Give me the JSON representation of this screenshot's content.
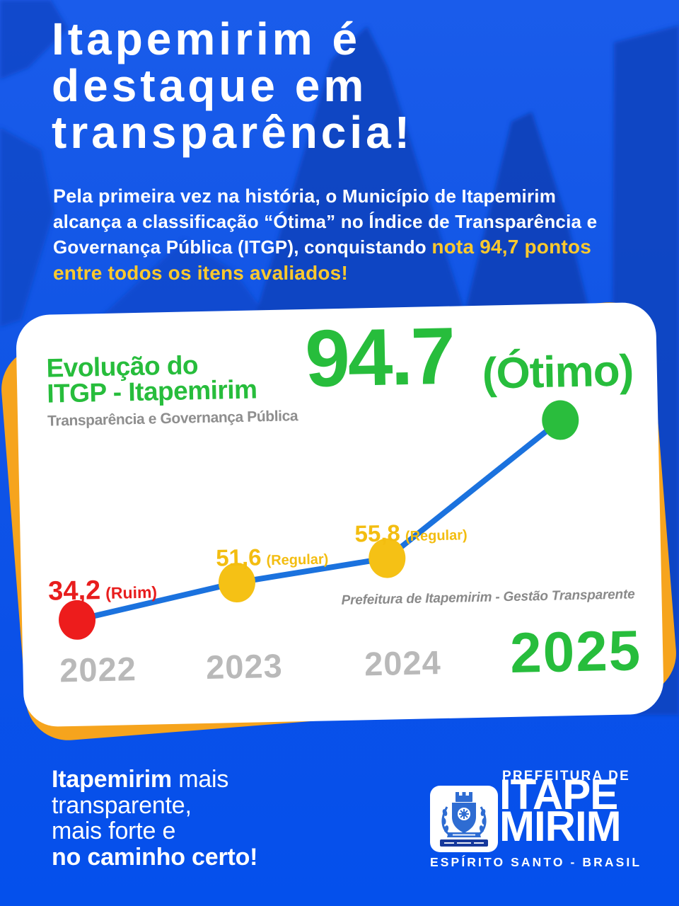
{
  "poster": {
    "headline_lines": [
      "Itapemirim é",
      "destaque em",
      "transparência!"
    ],
    "intro": {
      "segments": [
        {
          "text": "Pela primeira vez na história",
          "style": "bold-white"
        },
        {
          "text": ", o Município de Itapemirim alcança a classificação “Ótima” no Índice de Transparência e Governança Pública (ITGP), conquistando ",
          "style": "white"
        },
        {
          "text": "nota 94,7 pontos entre todos os itens avaliados!",
          "style": "bold-yellow"
        }
      ]
    }
  },
  "card": {
    "title_line1": "Evolução do",
    "title_line2": "ITGP - Itapemirim",
    "subtitle": "Transparência e Governança Pública",
    "score_value": "94.7",
    "score_label": "(Ótimo)",
    "credit": "Prefeitura de Itapemirim - Gestão Transparente"
  },
  "chart_data": {
    "type": "line",
    "title": "Evolução do ITGP - Itapemirim",
    "subtitle": "Transparência e Governança Pública",
    "categories": [
      "2022",
      "2023",
      "2024",
      "2025"
    ],
    "values": [
      34.2,
      51.6,
      55.8,
      94.7
    ],
    "point_labels": [
      "34,2",
      "51,6",
      "55,8",
      "94.7"
    ],
    "point_classifications": [
      "(Ruim)",
      "(Regular)",
      "(Regular)",
      "(Ótimo)"
    ],
    "point_colors": [
      "#ed1c1c",
      "#f5c115",
      "#f5c115",
      "#2abd3d"
    ],
    "line_color": "#1b72de",
    "ylim": [
      0,
      100
    ],
    "grid": false,
    "legend": false,
    "xlabel": "",
    "ylabel": ""
  },
  "footer": {
    "message": {
      "line1_bold": "Itapemirim",
      "line1_rest": " mais",
      "line2": "transparente,",
      "line3": "mais forte e",
      "line4_bold": "no caminho certo!"
    },
    "logo": {
      "top": "PREFEITURA DE",
      "name_line1": "ITAPE",
      "name_line2": "MIRIM",
      "bottom": "ESPÍRITO SANTO - BRASIL"
    }
  },
  "colors": {
    "background_blue": "#0b51e8",
    "mountain_blue": "#0c45c2",
    "card_white": "#ffffff",
    "accent_green": "#27bd3c",
    "accent_orange": "#f6a41d",
    "accent_yellow_text": "#fdc92d",
    "bad_red": "#e81d1d",
    "regular_yellow": "#f3bd10",
    "line_blue": "#1b72de",
    "muted_gray": "#b9b9b9"
  }
}
